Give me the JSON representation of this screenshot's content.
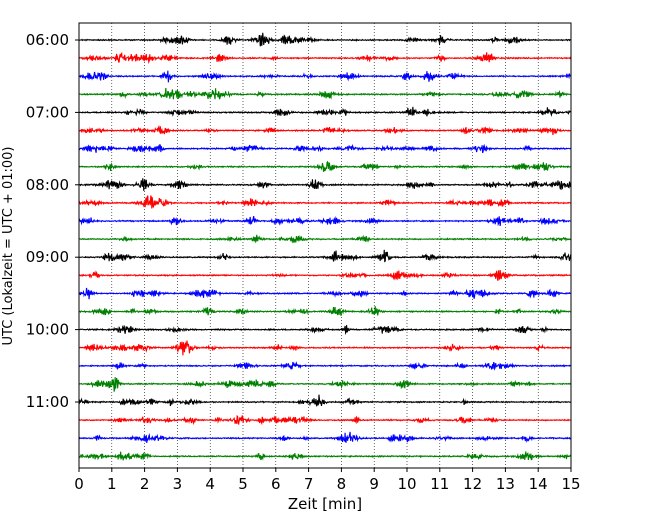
{
  "chart_data": {
    "type": "line",
    "title": "",
    "xlabel": "Zeit  [min]",
    "ylabel": "UTC (Lokalzeit = UTC + 01:00)",
    "xlim": [
      0,
      15
    ],
    "xticks": [
      0,
      1,
      2,
      3,
      4,
      5,
      6,
      7,
      8,
      9,
      10,
      11,
      12,
      13,
      14,
      15
    ],
    "xtick_labels": [
      "0",
      "1",
      "2",
      "3",
      "4",
      "5",
      "6",
      "7",
      "8",
      "9",
      "10",
      "11",
      "12",
      "13",
      "14",
      "15"
    ],
    "ytick_labels": [
      "06:00",
      "07:00",
      "08:00",
      "09:00",
      "10:00",
      "11:00"
    ],
    "grid": "vertical dotted",
    "trace_interval_min": 15,
    "start_time": "06:00",
    "series_colors": [
      "#000000",
      "#ff0000",
      "#0000ff",
      "#008000"
    ],
    "traces": [
      {
        "start": "06:00"
      },
      {
        "start": "06:15"
      },
      {
        "start": "06:30"
      },
      {
        "start": "06:45"
      },
      {
        "start": "07:00"
      },
      {
        "start": "07:15"
      },
      {
        "start": "07:30"
      },
      {
        "start": "07:45"
      },
      {
        "start": "08:00"
      },
      {
        "start": "08:15"
      },
      {
        "start": "08:30"
      },
      {
        "start": "08:45"
      },
      {
        "start": "09:00"
      },
      {
        "start": "09:15"
      },
      {
        "start": "09:30"
      },
      {
        "start": "09:45"
      },
      {
        "start": "10:00"
      },
      {
        "start": "10:15"
      },
      {
        "start": "10:30"
      },
      {
        "start": "10:45"
      },
      {
        "start": "11:00"
      },
      {
        "start": "11:15"
      },
      {
        "start": "11:30"
      },
      {
        "start": "11:45"
      }
    ]
  }
}
